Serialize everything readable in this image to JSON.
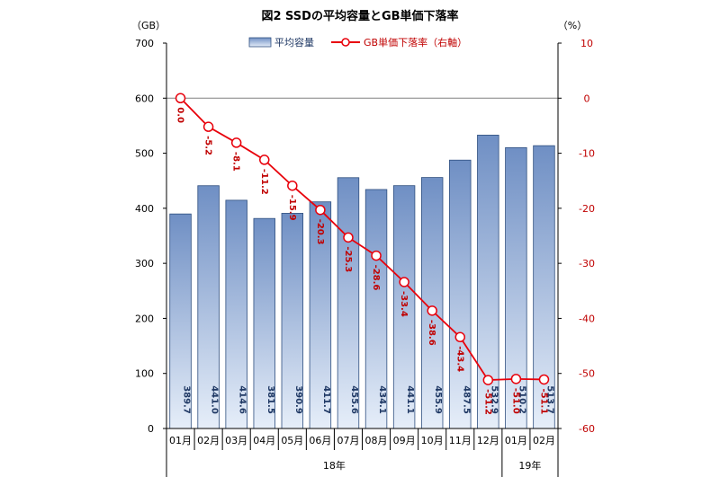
{
  "chart_data": {
    "type": "bar",
    "title": "図2 SSDの平均容量とGB単価下落率",
    "left_unit": "（GB）",
    "right_unit": "（%）",
    "left_ylim": [
      0,
      700
    ],
    "left_ticks": [
      "0",
      "100",
      "200",
      "300",
      "400",
      "500",
      "600",
      "700"
    ],
    "right_ylim": [
      -60,
      10
    ],
    "right_ticks": [
      "-60",
      "-50",
      "-40",
      "-30",
      "-20",
      "-10",
      "0",
      "10"
    ],
    "categories": [
      "01月",
      "02月",
      "03月",
      "04月",
      "05月",
      "06月",
      "07月",
      "08月",
      "09月",
      "10月",
      "11月",
      "12月",
      "01月",
      "02月"
    ],
    "year_groups": [
      {
        "label": "18年",
        "count": 12
      },
      {
        "label": "19年",
        "count": 2
      }
    ],
    "series": [
      {
        "name": "平均容量",
        "type": "bar",
        "axis": "left",
        "values": [
          389.7,
          441.0,
          414.6,
          381.5,
          390.9,
          411.7,
          455.6,
          434.1,
          441.1,
          455.9,
          487.5,
          532.9,
          510.2,
          513.7
        ],
        "labels": [
          "389.7",
          "441.0",
          "414.6",
          "381.5",
          "390.9",
          "411.7",
          "455.6",
          "434.1",
          "441.1",
          "455.9",
          "487.5",
          "532.9",
          "510.2",
          "513.7"
        ]
      },
      {
        "name": "GB単価下落率（右軸）",
        "type": "line",
        "axis": "right",
        "values": [
          0.0,
          -5.2,
          -8.1,
          -11.2,
          -15.9,
          -20.3,
          -25.3,
          -28.6,
          -33.4,
          -38.6,
          -43.4,
          -51.2,
          -51.0,
          -51.1
        ],
        "labels": [
          "0.0",
          "-5.2",
          "-8.1",
          "-11.2",
          "-15.9",
          "-20.3",
          "-25.3",
          "-28.6",
          "-33.4",
          "-38.6",
          "-43.4",
          "-51.2",
          "-51.0",
          "-51.1"
        ]
      }
    ],
    "colors": {
      "bar_top": "#6f8fc4",
      "bar_bottom": "#e6eef9",
      "bar_border": "#2f4f7f",
      "line": "#e8000b",
      "marker_fill": "#ffffff",
      "right_axis_text": "#c00000",
      "bar_label": "#1f3864"
    },
    "legend_position": "top-center",
    "grid": false
  }
}
